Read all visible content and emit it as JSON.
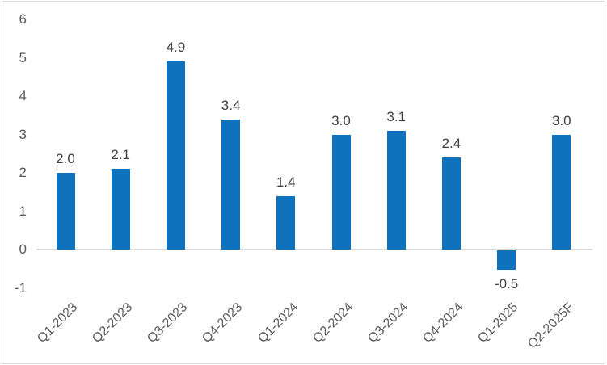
{
  "chart_data": {
    "type": "bar",
    "title": "",
    "xlabel": "",
    "ylabel": "",
    "categories": [
      "Q1-2023",
      "Q2-2023",
      "Q3-2023",
      "Q4-2023",
      "Q1-2024",
      "Q2-2024",
      "Q3-2024",
      "Q4-2024",
      "Q1-2025",
      "Q2-2025F"
    ],
    "values": [
      2.0,
      2.1,
      4.9,
      3.4,
      1.4,
      3.0,
      3.1,
      2.4,
      -0.5,
      3.0
    ],
    "data_labels": [
      "2.0",
      "2.1",
      "4.9",
      "3.4",
      "1.4",
      "3.0",
      "3.1",
      "2.4",
      "-0.5",
      "3.0"
    ],
    "yticks": [
      6,
      5,
      4,
      3,
      2,
      1,
      0,
      -1
    ],
    "ylim": [
      -1,
      6
    ],
    "grid": false,
    "legend": false,
    "bar_color": "#0e72bd",
    "axis_line_color": "#d9d9d9",
    "tick_label_color": "#595959",
    "data_label_color": "#404040"
  }
}
